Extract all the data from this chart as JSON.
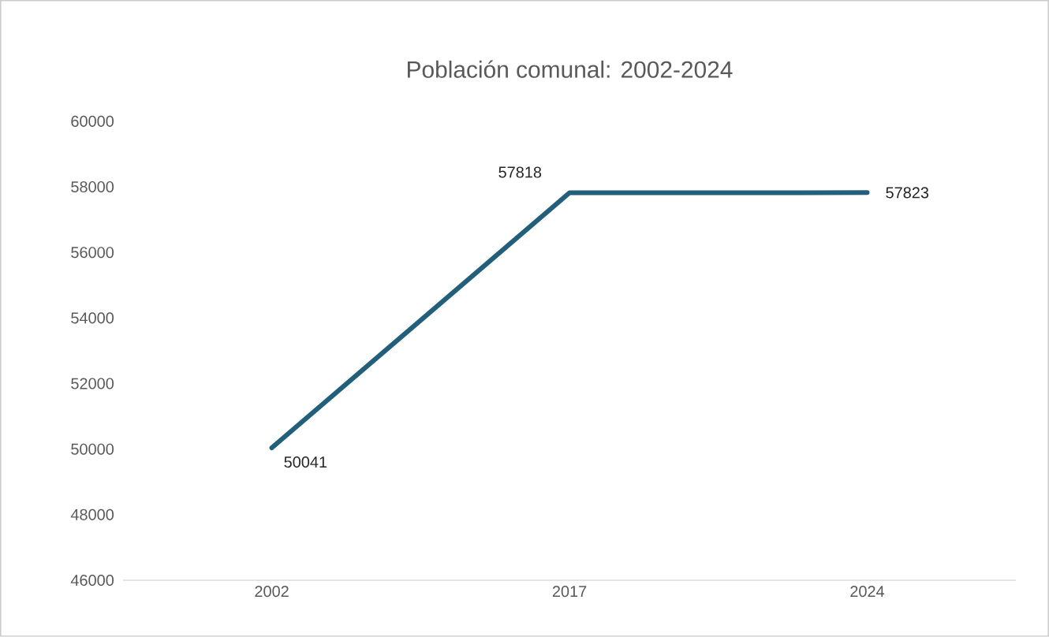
{
  "chart_data": {
    "type": "line",
    "title": "Población comunal: 2002-2024",
    "categories": [
      "2002",
      "2017",
      "2024"
    ],
    "values": [
      50041,
      57818,
      57823
    ],
    "color": "#215f7a",
    "ylim": [
      46000,
      60000
    ],
    "yticks": [
      46000,
      48000,
      50000,
      52000,
      54000,
      56000,
      58000,
      60000
    ],
    "data_labels": true,
    "marker": "none",
    "line_style": "solid"
  }
}
